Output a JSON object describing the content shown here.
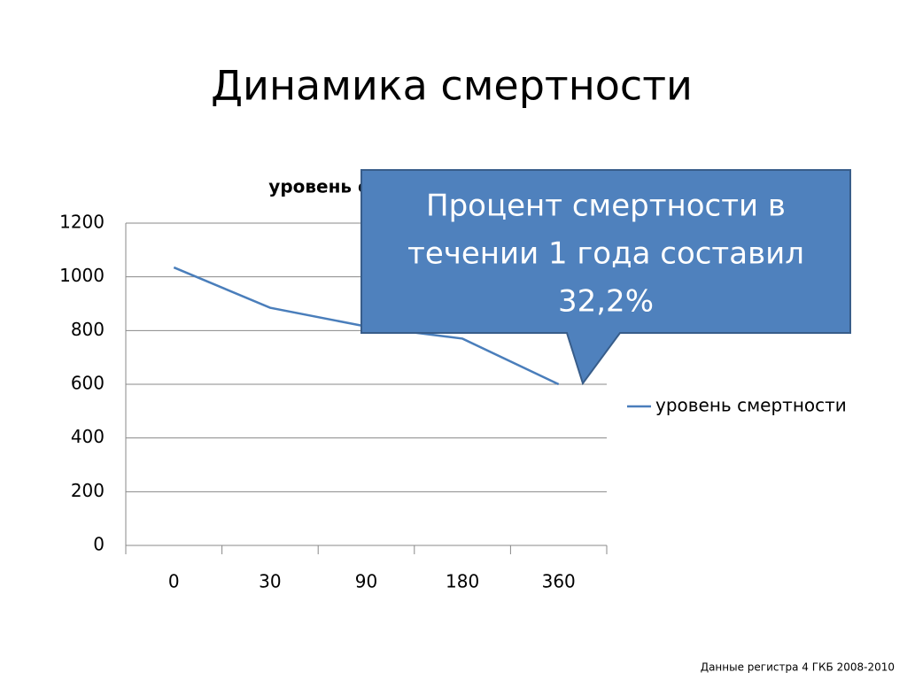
{
  "slide_title": "Динамика смертности",
  "callout": {
    "lines": [
      "Процент смертности в",
      "течении 1 года составил",
      "32,2%"
    ]
  },
  "footer": "Данные регистра 4 ГКБ 2008-2010",
  "chart_data": {
    "type": "line",
    "title": "уровень смертности",
    "categories": [
      "0",
      "30",
      "90",
      "180",
      "360"
    ],
    "series": [
      {
        "name": "уровень смертности",
        "color": "#4a7ebb",
        "values": [
          1035,
          885,
          815,
          770,
          600
        ]
      }
    ],
    "ylim": [
      0,
      1200
    ],
    "yticks": [
      0,
      200,
      400,
      600,
      800,
      1000,
      1200
    ],
    "grid": true,
    "legend": "right"
  }
}
